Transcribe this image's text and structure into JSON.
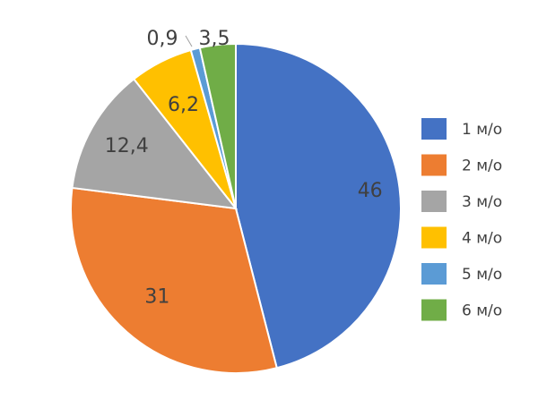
{
  "chart_data": {
    "type": "pie",
    "categories": [
      "1 м/о",
      "2 м/о",
      "3 м/о",
      "4 м/о",
      "5 м/о",
      "6 м/о"
    ],
    "values": [
      46,
      31,
      12.4,
      6.2,
      0.9,
      3.5
    ],
    "value_labels": [
      "46",
      "31",
      "12,4",
      "6,2",
      "0,9",
      "3,5"
    ],
    "colors": [
      "#4472c4",
      "#ed7d31",
      "#a5a5a5",
      "#ffc000",
      "#5b9bd5",
      "#70ad47"
    ],
    "start_angle": "12 o'clock",
    "direction": "clockwise",
    "legend_position": "right"
  }
}
